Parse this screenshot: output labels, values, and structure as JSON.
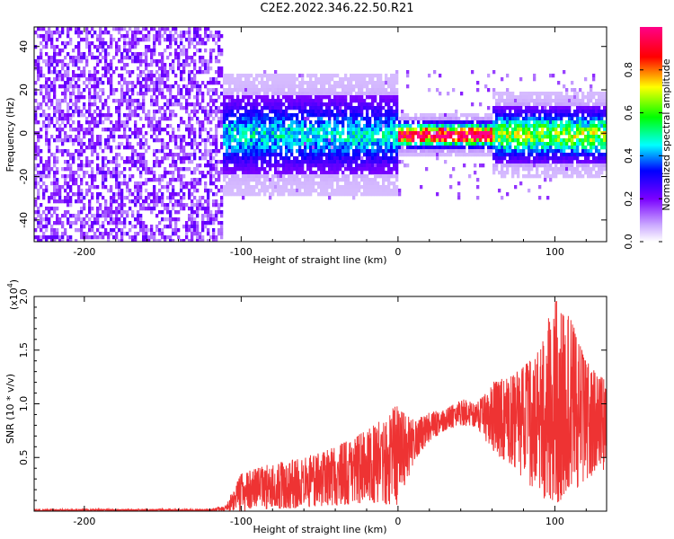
{
  "title": "C2E2.2022.346.22.50.R21",
  "chart_data": [
    {
      "type": "heatmap",
      "title": "C2E2.2022.346.22.50.R21",
      "xlabel": "Height of straight line (km)",
      "ylabel": "Frequency (Hz)",
      "xlim": [
        -232,
        133
      ],
      "ylim": [
        -50,
        49
      ],
      "xticks": [
        -200,
        -100,
        0,
        100
      ],
      "yticks": [
        -40,
        -20,
        0,
        20,
        40
      ],
      "colorbar": {
        "label": "Normalized spectral amplitude",
        "range": [
          0,
          1
        ],
        "ticks": [
          0.0,
          0.2,
          0.4,
          0.6,
          0.8
        ],
        "colors": [
          "#ffffff",
          "#7a00ff",
          "#0000ff",
          "#00ffff",
          "#00ff00",
          "#ffff00",
          "#ff0000",
          "#ff00ff"
        ]
      },
      "regions": [
        {
          "x_range": [
            -232,
            -110
          ],
          "freq_range": [
            -50,
            49
          ],
          "amplitude": 0.05,
          "description_value": "broadband noise"
        },
        {
          "x_range": [
            -110,
            0
          ],
          "freq_center": 0,
          "freq_halfwidth": 12,
          "amplitude": 0.3
        },
        {
          "x_range": [
            0,
            60
          ],
          "freq_center": 0,
          "freq_halfwidth": 3,
          "amplitude": 0.95
        },
        {
          "x_range": [
            60,
            133
          ],
          "freq_center": 0,
          "freq_halfwidth": 8,
          "amplitude": 0.45
        }
      ],
      "grid": false
    },
    {
      "type": "line",
      "xlabel": "Height of straight line (km)",
      "ylabel": "SNR (10 * v/v)",
      "y_multiplier_label": "(x10",
      "y_multiplier_exp": "4",
      "y_multiplier_close": ")",
      "xlim": [
        -232,
        133
      ],
      "ylim": [
        0,
        2.0
      ],
      "xticks": [
        -200,
        -100,
        0,
        100
      ],
      "yticks": [
        0.5,
        1.0,
        1.5,
        2.0
      ],
      "color": "#ee3333",
      "envelope": {
        "x": [
          -232,
          -120,
          -110,
          -100,
          -80,
          -60,
          -40,
          -20,
          0,
          10,
          20,
          30,
          40,
          50,
          60,
          70,
          80,
          90,
          100,
          110,
          120,
          133
        ],
        "y_min": [
          0.0,
          0.0,
          0.0,
          0.0,
          0.02,
          0.03,
          0.05,
          0.08,
          0.05,
          0.45,
          0.65,
          0.75,
          0.8,
          0.78,
          0.55,
          0.45,
          0.3,
          0.15,
          0.05,
          0.15,
          0.3,
          0.4
        ],
        "y_max": [
          0.02,
          0.02,
          0.05,
          0.35,
          0.45,
          0.5,
          0.6,
          0.75,
          1.0,
          0.85,
          0.92,
          0.95,
          1.05,
          1.0,
          1.2,
          1.25,
          1.35,
          1.5,
          2.0,
          1.8,
          1.4,
          1.2
        ]
      },
      "grid": false
    }
  ]
}
